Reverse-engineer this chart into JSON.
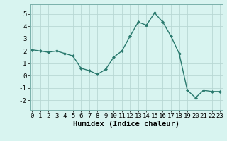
{
  "x": [
    0,
    1,
    2,
    3,
    4,
    5,
    6,
    7,
    8,
    9,
    10,
    11,
    12,
    13,
    14,
    15,
    16,
    17,
    18,
    19,
    20,
    21,
    22,
    23
  ],
  "y": [
    2.1,
    2.0,
    1.9,
    2.0,
    1.8,
    1.6,
    0.6,
    0.4,
    0.1,
    0.5,
    1.5,
    2.0,
    3.2,
    4.35,
    4.1,
    5.1,
    4.35,
    3.2,
    1.8,
    -1.2,
    -1.8,
    -1.2,
    -1.3,
    -1.3
  ],
  "xlabel": "Humidex (Indice chaleur)",
  "ylim": [
    -2.8,
    5.8
  ],
  "xlim": [
    -0.3,
    23.3
  ],
  "yticks": [
    -2,
    -1,
    0,
    1,
    2,
    3,
    4,
    5
  ],
  "xticks": [
    0,
    1,
    2,
    3,
    4,
    5,
    6,
    7,
    8,
    9,
    10,
    11,
    12,
    13,
    14,
    15,
    16,
    17,
    18,
    19,
    20,
    21,
    22,
    23
  ],
  "line_color": "#2a7a6e",
  "marker_color": "#2a7a6e",
  "bg_color": "#d8f4f0",
  "grid_color": "#b8d8d4",
  "xlabel_fontsize": 7.5,
  "tick_fontsize": 6.5
}
